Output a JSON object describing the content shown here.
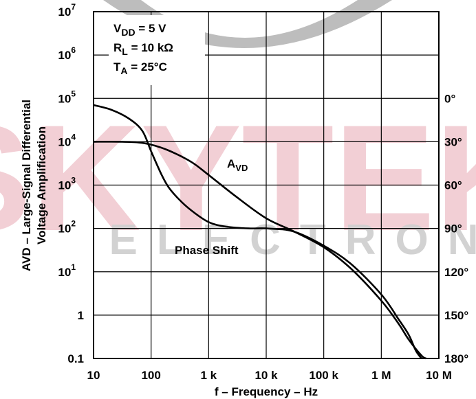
{
  "chart_data": {
    "type": "line",
    "xlabel": "f – Frequency – Hz",
    "ylabel_line1": "AVD – Large-Signal Differential",
    "ylabel_line2": "Voltage Amplification",
    "x_scale": "log",
    "y_scale": "log",
    "xlim": [
      10,
      10000000
    ],
    "ylim": [
      0.1,
      10000000
    ],
    "x_ticks": [
      {
        "value": 10,
        "label": "10"
      },
      {
        "value": 100,
        "label": "100"
      },
      {
        "value": 1000,
        "label": "1 k"
      },
      {
        "value": 10000,
        "label": "10 k"
      },
      {
        "value": 100000,
        "label": "100 k"
      },
      {
        "value": 1000000,
        "label": "1 M"
      },
      {
        "value": 10000000,
        "label": "10 M"
      }
    ],
    "y_ticks": [
      {
        "value": 0.1,
        "label": "0.1",
        "exp": ""
      },
      {
        "value": 1,
        "label": "1",
        "exp": ""
      },
      {
        "value": 10,
        "label": "10",
        "exp": "1"
      },
      {
        "value": 100,
        "label": "10",
        "exp": "2"
      },
      {
        "value": 1000,
        "label": "10",
        "exp": "3"
      },
      {
        "value": 10000,
        "label": "10",
        "exp": "4"
      },
      {
        "value": 100000,
        "label": "10",
        "exp": "5"
      },
      {
        "value": 1000000,
        "label": "10",
        "exp": "6"
      },
      {
        "value": 10000000,
        "label": "10",
        "exp": "7"
      }
    ],
    "y2_ticks": [
      {
        "value": 0,
        "label": "0°"
      },
      {
        "value": 30,
        "label": "30°"
      },
      {
        "value": 60,
        "label": "60°"
      },
      {
        "value": 90,
        "label": "90°"
      },
      {
        "value": 120,
        "label": "120°"
      },
      {
        "value": 150,
        "label": "150°"
      },
      {
        "value": 180,
        "label": "180°"
      }
    ],
    "y2lim": [
      0,
      180
    ],
    "grid": true,
    "conditions": [
      {
        "main": "V",
        "sub": "DD",
        "rest": " = 5 V"
      },
      {
        "main": "R",
        "sub": "L",
        "rest": " = 10 kΩ"
      },
      {
        "main": "T",
        "sub": "A",
        "rest": " = 25°C"
      }
    ],
    "series": [
      {
        "name": "AVD",
        "label_main": "A",
        "label_sub": "VD",
        "axis": "left",
        "x": [
          10,
          20,
          40,
          70,
          100,
          150,
          200,
          300,
          500,
          1000,
          2000,
          5000,
          10000,
          30000,
          100000,
          300000,
          1000000,
          2000000,
          3000000,
          4000000,
          5000000
        ],
        "y": [
          70000,
          55000,
          35000,
          18000,
          6000,
          1800,
          900,
          480,
          260,
          140,
          110,
          100,
          100,
          85,
          40,
          15,
          3,
          0.8,
          0.35,
          0.15,
          0.1
        ]
      },
      {
        "name": "Phase Shift",
        "axis": "right",
        "x": [
          10,
          30,
          60,
          100,
          200,
          500,
          1000,
          3000,
          10000,
          30000,
          100000,
          300000,
          1000000,
          2000000,
          3000000,
          5000000,
          6000000
        ],
        "y": [
          30,
          30,
          30.5,
          32,
          36,
          44,
          53,
          68,
          83,
          92,
          103,
          118,
          140,
          156,
          167,
          178,
          180
        ]
      }
    ],
    "annotations": [
      {
        "text": "Phase Shift"
      }
    ],
    "watermark": {
      "main": "SKYTEK",
      "sub": "ELECTRONIC"
    }
  }
}
